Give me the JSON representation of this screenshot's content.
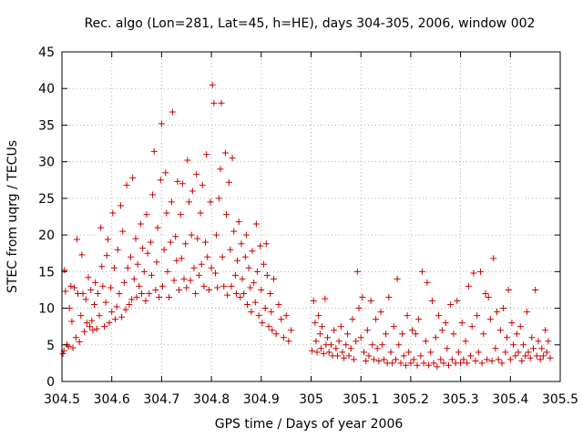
{
  "chart_data": {
    "type": "scatter",
    "title": "Rec. algo (Lon=281, Lat=45, h=HE), days 304-305, 2006, window 002",
    "xlabel": "GPS time / Days of year 2006",
    "ylabel": "STEC from uqrg / TECUs",
    "xlim": [
      304.5,
      305.5
    ],
    "ylim": [
      0,
      45
    ],
    "x_ticks": [
      304.5,
      304.6,
      304.7,
      304.8,
      304.9,
      305,
      305.1,
      305.2,
      305.3,
      305.4,
      305.5
    ],
    "x_tick_labels": [
      "304.5",
      "304.6",
      "304.7",
      "304.8",
      "304.9",
      "305",
      "305.1",
      "305.2",
      "305.3",
      "305.4",
      "305.5"
    ],
    "y_ticks": [
      0,
      5,
      10,
      15,
      20,
      25,
      30,
      35,
      40,
      45
    ],
    "y_tick_labels": [
      "0",
      "5",
      "10",
      "15",
      "20",
      "25",
      "30",
      "35",
      "40",
      "45"
    ],
    "grid": true,
    "marker": "plus",
    "color": "#cc0000",
    "points": [
      [
        304.502,
        3.8
      ],
      [
        304.504,
        4.2
      ],
      [
        304.505,
        15.2
      ],
      [
        304.507,
        12.3
      ],
      [
        304.51,
        5.0
      ],
      [
        304.513,
        4.8
      ],
      [
        304.515,
        10.0
      ],
      [
        304.518,
        13.0
      ],
      [
        304.52,
        8.2
      ],
      [
        304.522,
        4.6
      ],
      [
        304.525,
        12.8
      ],
      [
        304.528,
        6.0
      ],
      [
        304.53,
        19.4
      ],
      [
        304.532,
        12.0
      ],
      [
        304.535,
        5.4
      ],
      [
        304.538,
        9.0
      ],
      [
        304.54,
        17.3
      ],
      [
        304.542,
        12.0
      ],
      [
        304.545,
        6.8
      ],
      [
        304.548,
        11.2
      ],
      [
        304.55,
        8.0
      ],
      [
        304.553,
        14.2
      ],
      [
        304.556,
        7.5
      ],
      [
        304.558,
        12.5
      ],
      [
        304.56,
        8.3
      ],
      [
        304.562,
        7.0
      ],
      [
        304.565,
        10.5
      ],
      [
        304.567,
        13.5
      ],
      [
        304.57,
        7.2
      ],
      [
        304.572,
        12.0
      ],
      [
        304.575,
        9.0
      ],
      [
        304.578,
        21.0
      ],
      [
        304.58,
        15.7
      ],
      [
        304.582,
        13.0
      ],
      [
        304.585,
        7.5
      ],
      [
        304.588,
        10.8
      ],
      [
        304.59,
        17.2
      ],
      [
        304.592,
        19.4
      ],
      [
        304.595,
        8.0
      ],
      [
        304.598,
        12.8
      ],
      [
        304.6,
        9.5
      ],
      [
        304.602,
        23.0
      ],
      [
        304.605,
        15.5
      ],
      [
        304.607,
        8.5
      ],
      [
        304.61,
        10.2
      ],
      [
        304.612,
        18.0
      ],
      [
        304.615,
        12.0
      ],
      [
        304.618,
        24.0
      ],
      [
        304.62,
        8.8
      ],
      [
        304.622,
        20.5
      ],
      [
        304.625,
        13.5
      ],
      [
        304.628,
        9.8
      ],
      [
        304.63,
        26.8
      ],
      [
        304.632,
        15.5
      ],
      [
        304.635,
        10.5
      ],
      [
        304.638,
        17.0
      ],
      [
        304.64,
        11.2
      ],
      [
        304.642,
        27.8
      ],
      [
        304.645,
        14.0
      ],
      [
        304.648,
        19.5
      ],
      [
        304.65,
        11.5
      ],
      [
        304.652,
        16.0
      ],
      [
        304.655,
        13.0
      ],
      [
        304.658,
        21.5
      ],
      [
        304.66,
        12.0
      ],
      [
        304.662,
        18.2
      ],
      [
        304.665,
        15.0
      ],
      [
        304.668,
        11.0
      ],
      [
        304.67,
        22.8
      ],
      [
        304.672,
        17.5
      ],
      [
        304.675,
        12.0
      ],
      [
        304.678,
        19.0
      ],
      [
        304.68,
        14.5
      ],
      [
        304.682,
        25.5
      ],
      [
        304.685,
        31.4
      ],
      [
        304.688,
        12.5
      ],
      [
        304.69,
        16.3
      ],
      [
        304.692,
        21.0
      ],
      [
        304.695,
        11.5
      ],
      [
        304.698,
        27.5
      ],
      [
        304.7,
        35.2
      ],
      [
        304.702,
        13.0
      ],
      [
        304.705,
        18.0
      ],
      [
        304.708,
        28.5
      ],
      [
        304.71,
        23.0
      ],
      [
        304.712,
        15.0
      ],
      [
        304.715,
        11.5
      ],
      [
        304.718,
        19.0
      ],
      [
        304.72,
        24.5
      ],
      [
        304.722,
        36.8
      ],
      [
        304.725,
        13.8
      ],
      [
        304.728,
        19.8
      ],
      [
        304.73,
        16.5
      ],
      [
        304.732,
        27.3
      ],
      [
        304.735,
        12.5
      ],
      [
        304.738,
        22.8
      ],
      [
        304.74,
        16.8
      ],
      [
        304.742,
        27.0
      ],
      [
        304.745,
        14.0
      ],
      [
        304.748,
        18.8
      ],
      [
        304.75,
        12.8
      ],
      [
        304.752,
        30.2
      ],
      [
        304.755,
        24.5
      ],
      [
        304.758,
        13.8
      ],
      [
        304.76,
        20.0
      ],
      [
        304.762,
        26.0
      ],
      [
        304.765,
        15.5
      ],
      [
        304.768,
        12.0
      ],
      [
        304.77,
        28.3
      ],
      [
        304.772,
        19.5
      ],
      [
        304.775,
        14.5
      ],
      [
        304.778,
        23.0
      ],
      [
        304.78,
        16.0
      ],
      [
        304.782,
        26.8
      ],
      [
        304.785,
        13.0
      ],
      [
        304.788,
        19.0
      ],
      [
        304.79,
        31.0
      ],
      [
        304.792,
        17.0
      ],
      [
        304.795,
        12.5
      ],
      [
        304.798,
        24.5
      ],
      [
        304.8,
        15.5
      ],
      [
        304.802,
        40.5
      ],
      [
        304.805,
        38.0
      ],
      [
        304.808,
        14.8
      ],
      [
        304.81,
        20.0
      ],
      [
        304.812,
        12.8
      ],
      [
        304.815,
        25.0
      ],
      [
        304.818,
        29.0
      ],
      [
        304.82,
        38.0
      ],
      [
        304.822,
        17.0
      ],
      [
        304.825,
        13.0
      ],
      [
        304.828,
        31.2
      ],
      [
        304.83,
        22.8
      ],
      [
        304.832,
        11.8
      ],
      [
        304.835,
        27.2
      ],
      [
        304.838,
        18.0
      ],
      [
        304.84,
        13.0
      ],
      [
        304.842,
        30.5
      ],
      [
        304.845,
        20.5
      ],
      [
        304.848,
        14.5
      ],
      [
        304.85,
        12.0
      ],
      [
        304.852,
        16.5
      ],
      [
        304.855,
        21.8
      ],
      [
        304.858,
        11.5
      ],
      [
        304.86,
        18.8
      ],
      [
        304.862,
        14.0
      ],
      [
        304.865,
        12.0
      ],
      [
        304.868,
        17.0
      ],
      [
        304.87,
        20.0
      ],
      [
        304.872,
        10.5
      ],
      [
        304.875,
        15.5
      ],
      [
        304.878,
        12.8
      ],
      [
        304.88,
        9.5
      ],
      [
        304.882,
        17.8
      ],
      [
        304.885,
        13.5
      ],
      [
        304.888,
        10.8
      ],
      [
        304.89,
        21.5
      ],
      [
        304.892,
        15.0
      ],
      [
        304.895,
        9.0
      ],
      [
        304.898,
        18.5
      ],
      [
        304.9,
        12.5
      ],
      [
        304.902,
        8.0
      ],
      [
        304.905,
        16.0
      ],
      [
        304.908,
        10.0
      ],
      [
        304.91,
        18.8
      ],
      [
        304.912,
        14.5
      ],
      [
        304.915,
        7.5
      ],
      [
        304.918,
        12.0
      ],
      [
        304.92,
        9.5
      ],
      [
        304.922,
        7.0
      ],
      [
        304.925,
        14.0
      ],
      [
        304.93,
        6.5
      ],
      [
        304.935,
        10.5
      ],
      [
        304.94,
        8.5
      ],
      [
        304.945,
        6.0
      ],
      [
        304.95,
        9.0
      ],
      [
        304.955,
        5.5
      ],
      [
        304.96,
        7.0
      ],
      [
        305.002,
        4.2
      ],
      [
        305.005,
        11.0
      ],
      [
        305.008,
        8.0
      ],
      [
        305.01,
        5.5
      ],
      [
        305.012,
        4.0
      ],
      [
        305.015,
        9.0
      ],
      [
        305.018,
        6.5
      ],
      [
        305.02,
        4.5
      ],
      [
        305.022,
        7.5
      ],
      [
        305.025,
        3.8
      ],
      [
        305.028,
        11.3
      ],
      [
        305.03,
        5.0
      ],
      [
        305.033,
        6.0
      ],
      [
        305.036,
        4.0
      ],
      [
        305.04,
        5.0
      ],
      [
        305.043,
        3.5
      ],
      [
        305.046,
        7.0
      ],
      [
        305.05,
        4.5
      ],
      [
        305.053,
        3.5
      ],
      [
        305.056,
        5.5
      ],
      [
        305.06,
        7.5
      ],
      [
        305.063,
        4.0
      ],
      [
        305.066,
        3.2
      ],
      [
        305.07,
        5.0
      ],
      [
        305.073,
        6.5
      ],
      [
        305.076,
        3.5
      ],
      [
        305.08,
        4.5
      ],
      [
        305.083,
        8.5
      ],
      [
        305.086,
        3.0
      ],
      [
        305.09,
        5.5
      ],
      [
        305.093,
        15.0
      ],
      [
        305.096,
        10.0
      ],
      [
        305.1,
        6.0
      ],
      [
        305.103,
        11.5
      ],
      [
        305.106,
        4.0
      ],
      [
        305.11,
        2.8
      ],
      [
        305.113,
        7.0
      ],
      [
        305.116,
        3.5
      ],
      [
        305.12,
        11.0
      ],
      [
        305.123,
        5.0
      ],
      [
        305.126,
        3.0
      ],
      [
        305.13,
        8.5
      ],
      [
        305.133,
        4.5
      ],
      [
        305.136,
        2.8
      ],
      [
        305.14,
        9.5
      ],
      [
        305.143,
        5.0
      ],
      [
        305.146,
        3.0
      ],
      [
        305.15,
        6.5
      ],
      [
        305.153,
        2.5
      ],
      [
        305.156,
        11.5
      ],
      [
        305.16,
        4.0
      ],
      [
        305.163,
        2.5
      ],
      [
        305.166,
        7.5
      ],
      [
        305.17,
        3.0
      ],
      [
        305.173,
        14.0
      ],
      [
        305.176,
        5.0
      ],
      [
        305.18,
        2.5
      ],
      [
        305.183,
        6.5
      ],
      [
        305.186,
        3.5
      ],
      [
        305.19,
        2.2
      ],
      [
        305.193,
        9.0
      ],
      [
        305.196,
        4.0
      ],
      [
        305.2,
        2.5
      ],
      [
        305.203,
        7.0
      ],
      [
        305.206,
        3.0
      ],
      [
        305.21,
        6.5
      ],
      [
        305.213,
        2.2
      ],
      [
        305.216,
        8.5
      ],
      [
        305.22,
        3.5
      ],
      [
        305.223,
        15.0
      ],
      [
        305.226,
        2.5
      ],
      [
        305.23,
        5.5
      ],
      [
        305.233,
        13.5
      ],
      [
        305.236,
        2.2
      ],
      [
        305.24,
        4.0
      ],
      [
        305.243,
        11.0
      ],
      [
        305.246,
        2.5
      ],
      [
        305.25,
        6.0
      ],
      [
        305.253,
        2.0
      ],
      [
        305.256,
        9.0
      ],
      [
        305.26,
        3.0
      ],
      [
        305.263,
        7.0
      ],
      [
        305.266,
        2.5
      ],
      [
        305.27,
        8.0
      ],
      [
        305.273,
        4.5
      ],
      [
        305.276,
        2.2
      ],
      [
        305.28,
        10.5
      ],
      [
        305.283,
        3.0
      ],
      [
        305.286,
        6.5
      ],
      [
        305.29,
        2.5
      ],
      [
        305.293,
        11.0
      ],
      [
        305.296,
        4.0
      ],
      [
        305.3,
        2.5
      ],
      [
        305.303,
        8.0
      ],
      [
        305.306,
        3.0
      ],
      [
        305.31,
        5.5
      ],
      [
        305.313,
        2.5
      ],
      [
        305.316,
        13.0
      ],
      [
        305.32,
        3.5
      ],
      [
        305.323,
        7.5
      ],
      [
        305.326,
        14.8
      ],
      [
        305.33,
        2.8
      ],
      [
        305.333,
        9.0
      ],
      [
        305.336,
        4.0
      ],
      [
        305.34,
        15.0
      ],
      [
        305.343,
        2.5
      ],
      [
        305.346,
        6.5
      ],
      [
        305.35,
        12.0
      ],
      [
        305.353,
        3.0
      ],
      [
        305.356,
        11.5
      ],
      [
        305.36,
        8.5
      ],
      [
        305.363,
        2.8
      ],
      [
        305.366,
        16.8
      ],
      [
        305.37,
        4.5
      ],
      [
        305.373,
        9.5
      ],
      [
        305.376,
        3.0
      ],
      [
        305.38,
        7.0
      ],
      [
        305.383,
        2.5
      ],
      [
        305.386,
        10.0
      ],
      [
        305.39,
        4.0
      ],
      [
        305.393,
        6.0
      ],
      [
        305.396,
        12.5
      ],
      [
        305.4,
        3.0
      ],
      [
        305.403,
        8.0
      ],
      [
        305.406,
        5.0
      ],
      [
        305.41,
        3.5
      ],
      [
        305.413,
        6.5
      ],
      [
        305.416,
        4.0
      ],
      [
        305.42,
        7.5
      ],
      [
        305.423,
        2.8
      ],
      [
        305.426,
        5.0
      ],
      [
        305.43,
        3.5
      ],
      [
        305.433,
        9.5
      ],
      [
        305.436,
        4.0
      ],
      [
        305.44,
        3.2
      ],
      [
        305.443,
        6.0
      ],
      [
        305.446,
        4.5
      ],
      [
        305.45,
        12.5
      ],
      [
        305.453,
        3.5
      ],
      [
        305.456,
        5.5
      ],
      [
        305.46,
        3.0
      ],
      [
        305.463,
        4.5
      ],
      [
        305.466,
        3.5
      ],
      [
        305.47,
        7.0
      ],
      [
        305.473,
        4.0
      ],
      [
        305.476,
        5.5
      ],
      [
        305.48,
        3.2
      ]
    ]
  }
}
